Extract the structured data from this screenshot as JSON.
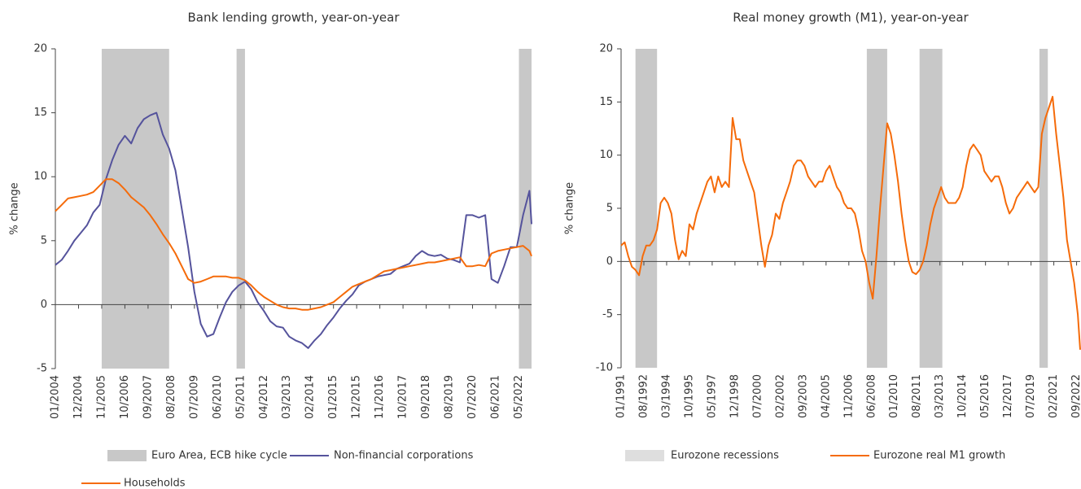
{
  "chart_data": [
    {
      "type": "line",
      "title": "Bank lending growth, year-on-year",
      "ylabel": "% change",
      "xlim": [
        "01/2004",
        "11/2022"
      ],
      "ylim": [
        -5,
        20
      ],
      "yticks": [
        -5,
        0,
        5,
        10,
        15,
        20
      ],
      "grid": false,
      "xticks": [
        "01/2004",
        "12/2004",
        "11/2005",
        "10/2006",
        "09/2007",
        "08/2008",
        "07/2009",
        "06/2010",
        "05/2011",
        "04/2012",
        "03/2013",
        "02/2014",
        "01/2015",
        "12/2015",
        "11/2016",
        "10/2017",
        "09/2018",
        "08/2019",
        "07/2020",
        "06/2021",
        "05/2022"
      ],
      "bands": {
        "name": "Euro Area, ECB hike cycle",
        "color": "#c8c8c8",
        "ranges": [
          [
            "11/2005",
            "07/2008"
          ],
          [
            "03/2011",
            "07/2011"
          ],
          [
            "05/2022",
            "11/2022"
          ]
        ]
      },
      "x": [
        "01/2004",
        "04/2004",
        "07/2004",
        "10/2004",
        "01/2005",
        "04/2005",
        "07/2005",
        "10/2005",
        "01/2006",
        "04/2006",
        "07/2006",
        "10/2006",
        "01/2007",
        "04/2007",
        "07/2007",
        "10/2007",
        "01/2008",
        "04/2008",
        "07/2008",
        "10/2008",
        "01/2009",
        "04/2009",
        "07/2009",
        "10/2009",
        "01/2010",
        "04/2010",
        "07/2010",
        "10/2010",
        "01/2011",
        "04/2011",
        "07/2011",
        "10/2011",
        "01/2012",
        "04/2012",
        "07/2012",
        "10/2012",
        "01/2013",
        "04/2013",
        "07/2013",
        "10/2013",
        "01/2014",
        "04/2014",
        "07/2014",
        "10/2014",
        "01/2015",
        "04/2015",
        "07/2015",
        "10/2015",
        "01/2016",
        "04/2016",
        "07/2016",
        "10/2016",
        "01/2017",
        "04/2017",
        "07/2017",
        "10/2017",
        "01/2018",
        "04/2018",
        "07/2018",
        "10/2018",
        "01/2019",
        "04/2019",
        "07/2019",
        "10/2019",
        "01/2020",
        "04/2020",
        "07/2020",
        "10/2020",
        "01/2021",
        "04/2021",
        "07/2021",
        "10/2021",
        "01/2022",
        "04/2022",
        "07/2022",
        "10/2022",
        "11/2022"
      ],
      "series": [
        {
          "name": "Non-financial corporations",
          "color": "#55539c",
          "values": [
            3.1,
            3.5,
            4.2,
            5,
            5.6,
            6.2,
            7.2,
            7.8,
            9.8,
            11.3,
            12.5,
            13.2,
            12.6,
            13.8,
            14.5,
            14.8,
            15,
            13.3,
            12.2,
            10.5,
            7.5,
            4.5,
            1.0,
            -1.5,
            -2.5,
            -2.3,
            -1.0,
            0.2,
            1.0,
            1.5,
            1.8,
            1.2,
            0.2,
            -0.5,
            -1.3,
            -1.7,
            -1.8,
            -2.5,
            -2.8,
            -3.0,
            -3.4,
            -2.8,
            -2.3,
            -1.6,
            -1.0,
            -0.3,
            0.3,
            0.8,
            1.5,
            1.8,
            2.0,
            2.2,
            2.3,
            2.4,
            2.8,
            3.0,
            3.2,
            3.8,
            4.2,
            3.9,
            3.8,
            3.9,
            3.6,
            3.5,
            3.3,
            7.0,
            7.0,
            6.8,
            7.0,
            2.0,
            1.7,
            3.0,
            4.5,
            4.5,
            7.0,
            8.9,
            6.3
          ]
        },
        {
          "name": "Households",
          "color": "#f56b0a",
          "values": [
            7.3,
            7.8,
            8.3,
            8.4,
            8.5,
            8.6,
            8.8,
            9.3,
            9.8,
            9.8,
            9.5,
            9.0,
            8.4,
            8.0,
            7.6,
            7.0,
            6.3,
            5.5,
            4.8,
            4.0,
            3.0,
            2.0,
            1.7,
            1.8,
            2.0,
            2.2,
            2.2,
            2.2,
            2.1,
            2.1,
            1.9,
            1.5,
            1.0,
            0.6,
            0.3,
            0,
            -0.2,
            -0.3,
            -0.3,
            -0.4,
            -0.4,
            -0.3,
            -0.2,
            0.0,
            0.2,
            0.6,
            1.0,
            1.4,
            1.6,
            1.8,
            2.0,
            2.3,
            2.6,
            2.7,
            2.8,
            2.9,
            3.0,
            3.1,
            3.2,
            3.3,
            3.3,
            3.4,
            3.5,
            3.6,
            3.7,
            3.0,
            3.0,
            3.1,
            3.0,
            4.0,
            4.2,
            4.3,
            4.4,
            4.5,
            4.6,
            4.2,
            3.8
          ]
        }
      ]
    },
    {
      "type": "line",
      "title": "Real money growth (M1), year-on-year",
      "ylabel": "% change",
      "xlim": [
        "01/1991",
        "12/2022"
      ],
      "ylim": [
        -10,
        20
      ],
      "yticks": [
        -10,
        -5,
        0,
        5,
        10,
        15,
        20
      ],
      "grid": false,
      "xticks": [
        "01/1991",
        "08/1992",
        "03/1994",
        "10/1995",
        "05/1997",
        "12/1998",
        "07/2000",
        "02/2002",
        "09/2003",
        "04/2005",
        "11/2006",
        "06/2008",
        "01/2010",
        "08/2011",
        "03/2013",
        "10/2014",
        "05/2016",
        "12/2017",
        "07/2019",
        "02/2021",
        "09/2022"
      ],
      "bands": {
        "name": "Eurozone recessions",
        "color": "#c8c8c8",
        "ranges": [
          [
            "01/1992",
            "07/1993"
          ],
          [
            "02/2008",
            "07/2009"
          ],
          [
            "10/2011",
            "05/2013"
          ],
          [
            "02/2020",
            "09/2020"
          ]
        ]
      },
      "x": [
        "01/1991",
        "04/1991",
        "07/1991",
        "10/1991",
        "01/1992",
        "04/1992",
        "07/1992",
        "10/1992",
        "01/1993",
        "04/1993",
        "07/1993",
        "10/1993",
        "01/1994",
        "04/1994",
        "07/1994",
        "10/1994",
        "01/1995",
        "04/1995",
        "07/1995",
        "10/1995",
        "01/1996",
        "04/1996",
        "07/1996",
        "10/1996",
        "01/1997",
        "04/1997",
        "07/1997",
        "10/1997",
        "01/1998",
        "04/1998",
        "07/1998",
        "10/1998",
        "01/1999",
        "04/1999",
        "07/1999",
        "10/1999",
        "01/2000",
        "04/2000",
        "07/2000",
        "10/2000",
        "01/2001",
        "04/2001",
        "07/2001",
        "10/2001",
        "01/2002",
        "04/2002",
        "07/2002",
        "10/2002",
        "01/2003",
        "04/2003",
        "07/2003",
        "10/2003",
        "01/2004",
        "04/2004",
        "07/2004",
        "10/2004",
        "01/2005",
        "04/2005",
        "07/2005",
        "10/2005",
        "01/2006",
        "04/2006",
        "07/2006",
        "10/2006",
        "01/2007",
        "04/2007",
        "07/2007",
        "10/2007",
        "01/2008",
        "04/2008",
        "07/2008",
        "10/2008",
        "01/2009",
        "04/2009",
        "07/2009",
        "10/2009",
        "01/2010",
        "04/2010",
        "07/2010",
        "10/2010",
        "01/2011",
        "04/2011",
        "07/2011",
        "10/2011",
        "01/2012",
        "04/2012",
        "07/2012",
        "10/2012",
        "01/2013",
        "04/2013",
        "07/2013",
        "10/2013",
        "01/2014",
        "04/2014",
        "07/2014",
        "10/2014",
        "01/2015",
        "04/2015",
        "07/2015",
        "10/2015",
        "01/2016",
        "04/2016",
        "07/2016",
        "10/2016",
        "01/2017",
        "04/2017",
        "07/2017",
        "10/2017",
        "01/2018",
        "04/2018",
        "07/2018",
        "10/2018",
        "01/2019",
        "04/2019",
        "07/2019",
        "10/2019",
        "01/2020",
        "04/2020",
        "07/2020",
        "10/2020",
        "01/2021",
        "04/2021",
        "07/2021",
        "10/2021",
        "01/2022",
        "04/2022",
        "07/2022",
        "10/2022",
        "12/2022"
      ],
      "series": [
        {
          "name": "Eurozone real M1 growth",
          "color": "#f56b0a",
          "values": [
            1.5,
            1.8,
            0.5,
            -0.5,
            -0.8,
            -1.3,
            0.5,
            1.5,
            1.5,
            2.0,
            3.0,
            5.5,
            6.0,
            5.5,
            4.5,
            2.0,
            0.2,
            1.0,
            0.5,
            3.5,
            3.0,
            4.5,
            5.5,
            6.5,
            7.5,
            8.0,
            6.5,
            8.0,
            7.0,
            7.5,
            7.0,
            13.5,
            11.5,
            11.5,
            9.5,
            8.5,
            7.5,
            6.5,
            4.0,
            1.5,
            -0.5,
            1.5,
            2.5,
            4.5,
            4.0,
            5.5,
            6.5,
            7.5,
            9.0,
            9.5,
            9.5,
            9.0,
            8.0,
            7.5,
            7.0,
            7.5,
            7.5,
            8.5,
            9.0,
            8.0,
            7.0,
            6.5,
            5.5,
            5.0,
            5.0,
            4.5,
            3.0,
            1.0,
            0.0,
            -2.0,
            -3.5,
            0.5,
            5.0,
            9.0,
            13.0,
            12.0,
            10.0,
            7.5,
            4.5,
            2.0,
            0.0,
            -1.0,
            -1.2,
            -0.8,
            0.0,
            1.5,
            3.5,
            5.0,
            6.0,
            7.0,
            6.0,
            5.5,
            5.5,
            5.5,
            6.0,
            7.0,
            9.0,
            10.5,
            11.0,
            10.5,
            10.0,
            8.5,
            8.0,
            7.5,
            8.0,
            8.0,
            7.0,
            5.5,
            4.5,
            5.0,
            6.0,
            6.5,
            7.0,
            7.5,
            7.0,
            6.5,
            7.0,
            12.0,
            13.5,
            14.5,
            15.5,
            12.0,
            9.0,
            6.0,
            2.0,
            0.0,
            -2.0,
            -5.0,
            -8.3
          ]
        }
      ]
    }
  ]
}
